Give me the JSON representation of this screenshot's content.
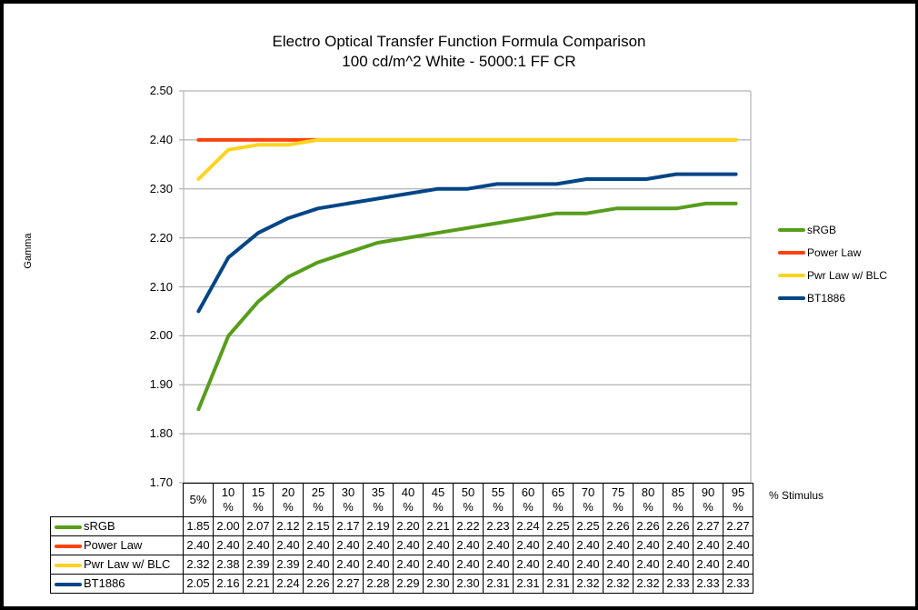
{
  "chart_data": {
    "type": "line",
    "title": "Electro Optical Transfer Function Formula Comparison",
    "subtitle": "100 cd/m^2 White - 5000:1 FF CR",
    "xlabel": "% Stimulus",
    "ylabel": "Gamma",
    "ylim": [
      1.7,
      2.5
    ],
    "yticks": [
      "2.50",
      "2.40",
      "2.30",
      "2.20",
      "2.10",
      "2.00",
      "1.90",
      "1.80",
      "1.70"
    ],
    "grid": true,
    "legend_position": "right",
    "categories": [
      "5%",
      "10 %",
      "15 %",
      "20 %",
      "25 %",
      "30 %",
      "35 %",
      "40 %",
      "45 %",
      "50 %",
      "55 %",
      "60 %",
      "65 %",
      "70 %",
      "75 %",
      "80 %",
      "85 %",
      "90 %",
      "95 %"
    ],
    "series": [
      {
        "name": "sRGB",
        "color": "#579d1c",
        "values": [
          1.85,
          2.0,
          2.07,
          2.12,
          2.15,
          2.17,
          2.19,
          2.2,
          2.21,
          2.22,
          2.23,
          2.24,
          2.25,
          2.25,
          2.26,
          2.26,
          2.26,
          2.27,
          2.27
        ]
      },
      {
        "name": "Power Law",
        "color": "#ff420e",
        "values": [
          2.4,
          2.4,
          2.4,
          2.4,
          2.4,
          2.4,
          2.4,
          2.4,
          2.4,
          2.4,
          2.4,
          2.4,
          2.4,
          2.4,
          2.4,
          2.4,
          2.4,
          2.4,
          2.4
        ]
      },
      {
        "name": "Pwr Law w/ BLC",
        "color": "#ffd320",
        "values": [
          2.32,
          2.38,
          2.39,
          2.39,
          2.4,
          2.4,
          2.4,
          2.4,
          2.4,
          2.4,
          2.4,
          2.4,
          2.4,
          2.4,
          2.4,
          2.4,
          2.4,
          2.4,
          2.4
        ]
      },
      {
        "name": "BT1886",
        "color": "#004586",
        "values": [
          2.05,
          2.16,
          2.21,
          2.24,
          2.26,
          2.27,
          2.28,
          2.29,
          2.3,
          2.3,
          2.31,
          2.31,
          2.31,
          2.32,
          2.32,
          2.32,
          2.33,
          2.33,
          2.33
        ]
      }
    ]
  }
}
